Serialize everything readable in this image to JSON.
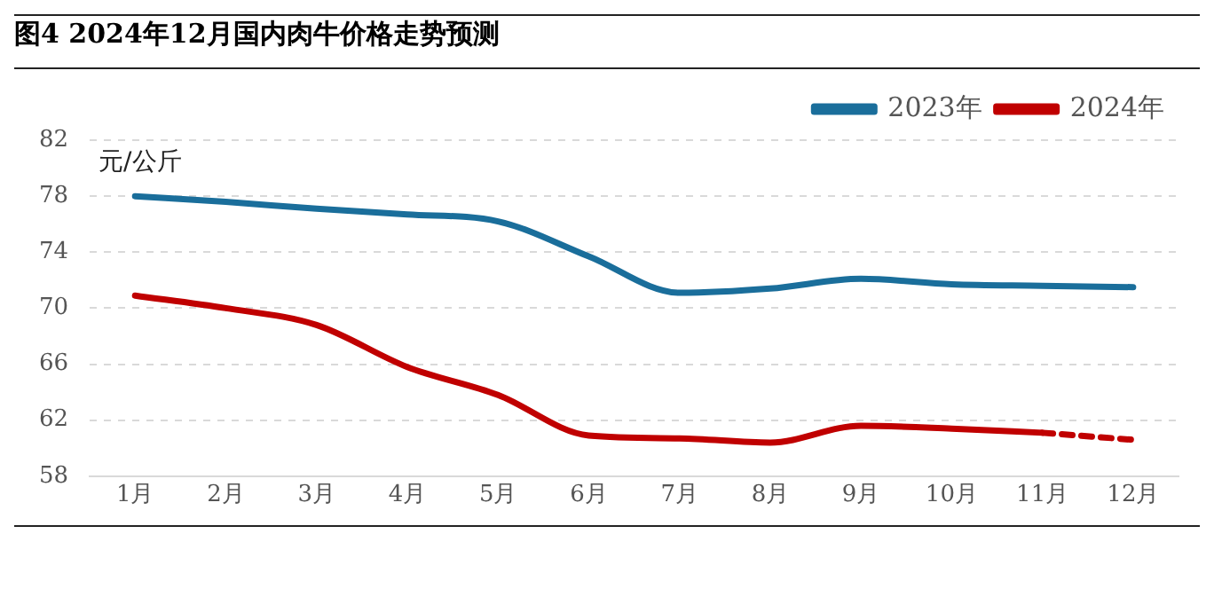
{
  "chart_data": {
    "type": "line",
    "title": "图4 2024年12月国内肉牛价格走势预测",
    "ylabel": "元/公斤",
    "categories": [
      "1月",
      "2月",
      "3月",
      "4月",
      "5月",
      "6月",
      "7月",
      "8月",
      "9月",
      "10月",
      "11月",
      "12月"
    ],
    "series": [
      {
        "name": "2023年",
        "color": "#1a6e9b",
        "values": [
          78.0,
          77.6,
          77.1,
          76.7,
          76.2,
          73.7,
          71.1,
          71.4,
          72.1,
          71.7,
          71.6,
          71.5
        ]
      },
      {
        "name": "2024年",
        "color": "#c00000",
        "values": [
          70.9,
          70.0,
          68.8,
          65.8,
          63.8,
          60.9,
          60.7,
          60.4,
          61.6,
          61.4,
          61.1,
          null
        ]
      },
      {
        "color": "#c00000",
        "line_style": "dashed",
        "values": [
          null,
          null,
          null,
          null,
          null,
          null,
          null,
          null,
          null,
          null,
          61.1,
          60.6
        ]
      }
    ],
    "ylim": [
      58,
      82
    ],
    "yticks": [
      58,
      62,
      66,
      70,
      74,
      78,
      82
    ],
    "grid": "y",
    "legend": "top right",
    "marker": "none",
    "line_style": "solid"
  }
}
